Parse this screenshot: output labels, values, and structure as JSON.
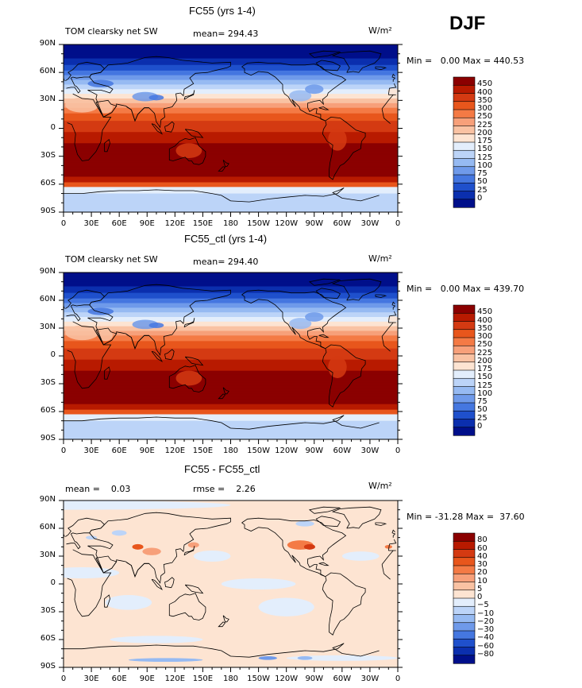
{
  "season": "DJF",
  "panels": [
    {
      "title": "FC55 (yrs 1-4)",
      "left_label": "TOM clearsky net SW",
      "center_label": "mean= 294.43",
      "units": "W/m²",
      "minmax": "Min =   0.00 Max = 440.53",
      "field": "absolute",
      "colorbar": {
        "labels": [
          "450",
          "400",
          "350",
          "300",
          "250",
          "225",
          "200",
          "175",
          "150",
          "125",
          "100",
          "75",
          "50",
          "25",
          "0"
        ],
        "colors": [
          "#8b0000",
          "#b81a00",
          "#d43a12",
          "#e8561c",
          "#f47a45",
          "#f7a07a",
          "#f9c2a3",
          "#fde4d2",
          "#e3eefc",
          "#bcd4f8",
          "#96baf2",
          "#6f9aea",
          "#4577e0",
          "#1f50cc",
          "#0b2fae",
          "#000f8a"
        ]
      }
    },
    {
      "title": "FC55_ctl (yrs 1-4)",
      "left_label": "TOM clearsky net SW",
      "center_label": "mean= 294.40",
      "units": "W/m²",
      "minmax": "Min =   0.00 Max = 439.70",
      "field": "absolute",
      "colorbar": {
        "labels": [
          "450",
          "400",
          "350",
          "300",
          "250",
          "225",
          "200",
          "175",
          "150",
          "125",
          "100",
          "75",
          "50",
          "25",
          "0"
        ],
        "colors": [
          "#8b0000",
          "#b81a00",
          "#d43a12",
          "#e8561c",
          "#f47a45",
          "#f7a07a",
          "#f9c2a3",
          "#fde4d2",
          "#e3eefc",
          "#bcd4f8",
          "#96baf2",
          "#6f9aea",
          "#4577e0",
          "#1f50cc",
          "#0b2fae",
          "#000f8a"
        ]
      }
    },
    {
      "title": "FC55 - FC55_ctl",
      "left_label": "mean =    0.03",
      "center_label": "rmse =    2.26",
      "units": "W/m²",
      "minmax": "Min = -31.28 Max =  37.60",
      "field": "difference",
      "colorbar": {
        "labels": [
          "80",
          "60",
          "40",
          "30",
          "20",
          "10",
          "5",
          "0",
          "−5",
          "−10",
          "−20",
          "−30",
          "−40",
          "−60",
          "−80"
        ],
        "colors": [
          "#8b0000",
          "#b81a00",
          "#d43a12",
          "#e8561c",
          "#f47a45",
          "#f7a07a",
          "#f9c2a3",
          "#fde4d2",
          "#e3eefc",
          "#bcd4f8",
          "#96baf2",
          "#6f9aea",
          "#4577e0",
          "#1f50cc",
          "#0b2fae",
          "#000f8a"
        ]
      }
    }
  ],
  "axes": {
    "x_labels": [
      "0",
      "30E",
      "60E",
      "90E",
      "120E",
      "150E",
      "180",
      "150W",
      "120W",
      "90W",
      "60W",
      "30W",
      "0"
    ],
    "y_labels": [
      "90N",
      "60N",
      "30N",
      "0",
      "30S",
      "60S",
      "90S"
    ]
  }
}
